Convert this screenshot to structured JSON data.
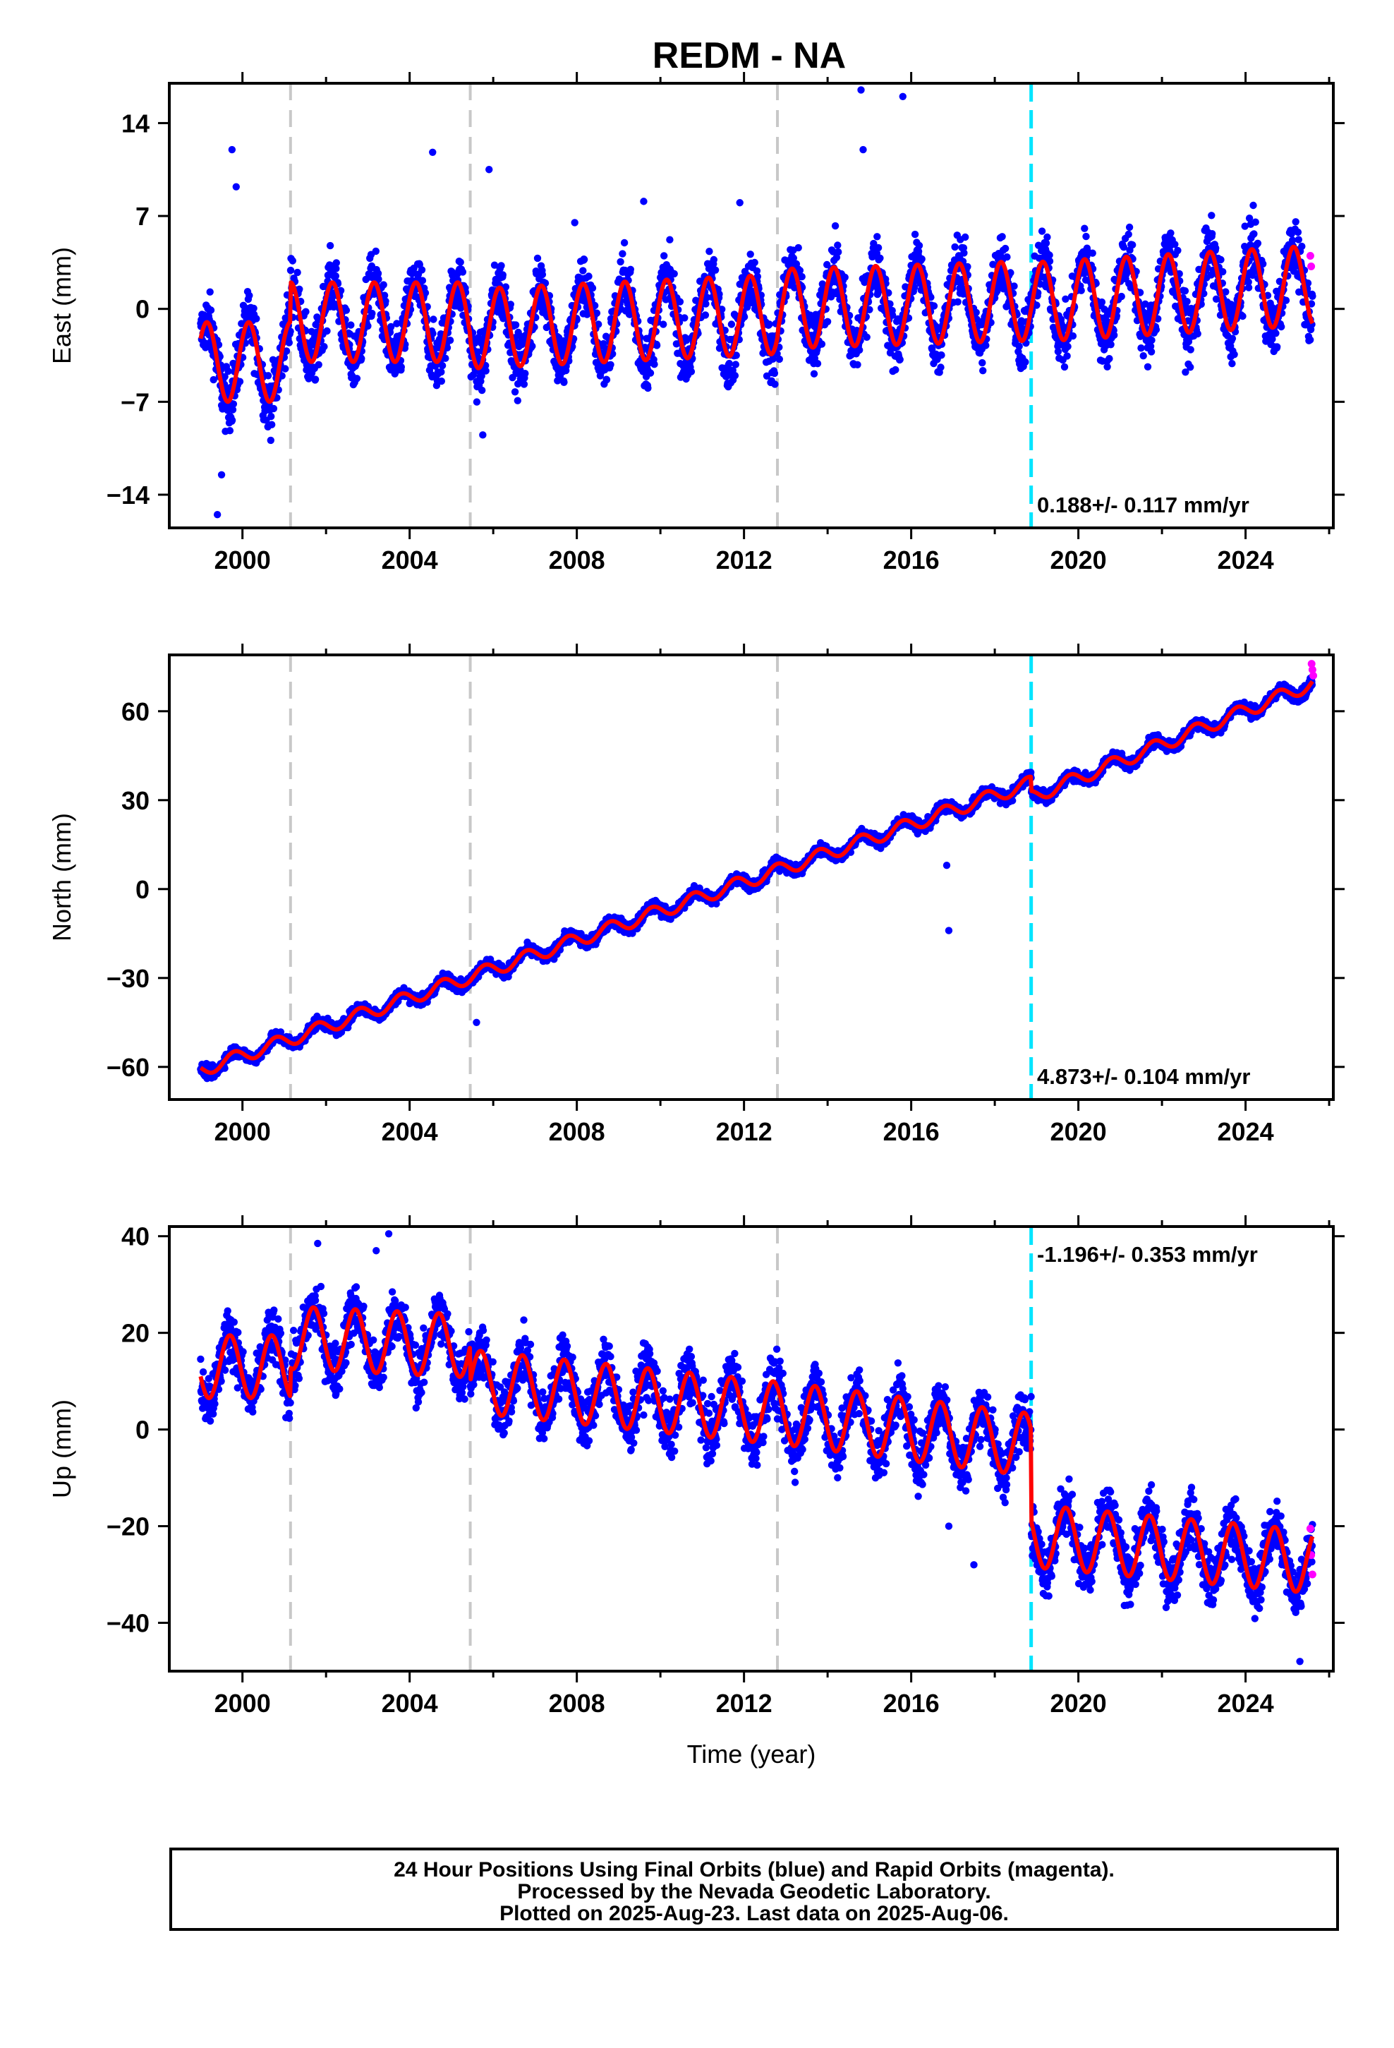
{
  "title": "REDM - NA",
  "footer": {
    "line1": "24 Hour Positions Using Final Orbits (blue) and Rapid Orbits (magenta).",
    "line2": "Processed by the Nevada Geodetic Laboratory.",
    "line3": "Plotted on 2025-Aug-23. Last data on 2025-Aug-06."
  },
  "colors": {
    "final_orbits": "#0000ff",
    "rapid_orbits": "#ff00ff",
    "model_fit": "#ff0000",
    "equipment_change": "#c8c8c8",
    "earthquake": "#00e5ff"
  },
  "chart_data": [
    {
      "type": "scatter",
      "component": "east",
      "ylabel": "East (mm)",
      "xlim": [
        1998.25,
        2026.1
      ],
      "ylim": [
        -16.5,
        17
      ],
      "xticks": [
        "2000",
        "2004",
        "2008",
        "2012",
        "2016",
        "2020",
        "2024"
      ],
      "yticks": [
        "14",
        "7",
        "0",
        "−7",
        "−14"
      ],
      "ytick_values": [
        14,
        7,
        0,
        -7,
        -14
      ],
      "rate_label": "0.188+/- 0.117 mm/yr",
      "rate_position": "bottom-right",
      "steps": [
        {
          "year": 2001.15,
          "kind": "equipment",
          "offset": 0
        },
        {
          "year": 2005.45,
          "kind": "equipment",
          "offset": 0
        },
        {
          "year": 2012.8,
          "kind": "equipment",
          "offset": 0
        },
        {
          "year": 2018.87,
          "kind": "earthquake",
          "offset": 0
        }
      ],
      "fit": {
        "start_year": 1999.0,
        "end_year": 2025.6,
        "segments": [
          {
            "start": 1999.0,
            "end": 2001.15,
            "value_at_start": -4.0,
            "rate_mm_yr": 0
          },
          {
            "start": 2001.15,
            "end": 2005.45,
            "value_at_start": -1.0,
            "rate_mm_yr": 0
          },
          {
            "start": 2005.45,
            "end": 2012.8,
            "value_at_start": -1.5,
            "rate_mm_yr": 0.15
          },
          {
            "start": 2012.8,
            "end": 2018.87,
            "value_at_start": 0.0,
            "rate_mm_yr": 0.1
          },
          {
            "start": 2018.87,
            "end": 2025.6,
            "value_at_start": 0.5,
            "rate_mm_yr": 0.188
          }
        ],
        "annual_amplitude_mm": 3.0,
        "phase_year_frac": 0.9
      },
      "scatter_noise_mm": 1.6,
      "outliers": [
        {
          "x": 1999.75,
          "y": 12.0
        },
        {
          "x": 1999.85,
          "y": 9.2
        },
        {
          "x": 2004.55,
          "y": 11.8
        },
        {
          "x": 2005.9,
          "y": 10.5
        },
        {
          "x": 2007.95,
          "y": 6.5
        },
        {
          "x": 2009.6,
          "y": 8.1
        },
        {
          "x": 2014.8,
          "y": 16.5
        },
        {
          "x": 2014.85,
          "y": 12.0
        },
        {
          "x": 2015.8,
          "y": 16.0
        },
        {
          "x": 2011.9,
          "y": 8.0
        },
        {
          "x": 1999.4,
          "y": -15.5
        },
        {
          "x": 1999.5,
          "y": -12.5
        },
        {
          "x": 2005.75,
          "y": -9.5
        }
      ],
      "rapid_points": [
        {
          "x": 2025.55,
          "y": 4.0
        },
        {
          "x": 2025.57,
          "y": 3.2
        }
      ]
    },
    {
      "type": "scatter",
      "component": "north",
      "ylabel": "North (mm)",
      "xlim": [
        1998.25,
        2026.1
      ],
      "ylim": [
        -71,
        79
      ],
      "xticks": [
        "2000",
        "2004",
        "2008",
        "2012",
        "2016",
        "2020",
        "2024"
      ],
      "yticks": [
        "60",
        "30",
        "0",
        "−30",
        "−60"
      ],
      "ytick_values": [
        60,
        30,
        0,
        -30,
        -60
      ],
      "rate_label": "4.873+/- 0.104 mm/yr",
      "rate_position": "bottom-right",
      "steps": [
        {
          "year": 2001.15,
          "kind": "equipment",
          "offset": 0
        },
        {
          "year": 2005.45,
          "kind": "equipment",
          "offset": 0
        },
        {
          "year": 2012.8,
          "kind": "equipment",
          "offset": 0
        },
        {
          "year": 2018.87,
          "kind": "earthquake",
          "offset": -4
        }
      ],
      "fit": {
        "start_year": 1999.0,
        "end_year": 2025.6,
        "segments": [
          {
            "start": 1999.0,
            "end": 2018.87,
            "value_at_start": -61.0,
            "rate_mm_yr": 4.873
          },
          {
            "start": 2018.87,
            "end": 2025.6,
            "value_at_start": 31.0,
            "rate_mm_yr": 5.7
          }
        ],
        "annual_amplitude_mm": 2.3,
        "phase_year_frac": 0.55
      },
      "scatter_noise_mm": 1.4,
      "outliers": [
        {
          "x": 2005.6,
          "y": -45.0
        },
        {
          "x": 2016.9,
          "y": -14.0
        },
        {
          "x": 2016.85,
          "y": 8.0
        }
      ],
      "rapid_points": [
        {
          "x": 2025.58,
          "y": 76.0
        },
        {
          "x": 2025.6,
          "y": 74.0
        },
        {
          "x": 2025.62,
          "y": 72.0
        }
      ]
    },
    {
      "type": "scatter",
      "component": "up",
      "ylabel": "Up (mm)",
      "xlabel": "Time (year)",
      "xlim": [
        1998.25,
        2026.1
      ],
      "ylim": [
        -50,
        42
      ],
      "xticks": [
        "2000",
        "2004",
        "2008",
        "2012",
        "2016",
        "2020",
        "2024"
      ],
      "yticks": [
        "40",
        "20",
        "0",
        "−20",
        "−40"
      ],
      "ytick_values": [
        40,
        20,
        0,
        -20,
        -40
      ],
      "rate_label": "-1.196+/- 0.353 mm/yr",
      "rate_position": "top-right",
      "steps": [
        {
          "year": 2001.15,
          "kind": "equipment",
          "offset": 0
        },
        {
          "year": 2005.45,
          "kind": "equipment",
          "offset": 0
        },
        {
          "year": 2012.8,
          "kind": "equipment",
          "offset": 0
        },
        {
          "year": 2018.87,
          "kind": "earthquake",
          "offset": -20
        }
      ],
      "fit": {
        "start_year": 1999.0,
        "end_year": 2025.6,
        "segments": [
          {
            "start": 1999.0,
            "end": 2001.15,
            "value_at_start": 13.0,
            "rate_mm_yr": 0
          },
          {
            "start": 2001.15,
            "end": 2005.45,
            "value_at_start": 19.0,
            "rate_mm_yr": -0.4
          },
          {
            "start": 2005.45,
            "end": 2012.8,
            "value_at_start": 10.0,
            "rate_mm_yr": -0.9
          },
          {
            "start": 2012.8,
            "end": 2018.87,
            "value_at_start": 3.5,
            "rate_mm_yr": -1.1
          },
          {
            "start": 2018.87,
            "end": 2025.6,
            "value_at_start": -22.0,
            "rate_mm_yr": -0.8
          }
        ],
        "annual_amplitude_mm": 6.5,
        "phase_year_frac": 0.45
      },
      "scatter_noise_mm": 4.0,
      "outliers": [
        {
          "x": 2001.8,
          "y": 38.5
        },
        {
          "x": 2003.5,
          "y": 40.5
        },
        {
          "x": 2003.2,
          "y": 37.0
        },
        {
          "x": 2017.5,
          "y": -28.0
        },
        {
          "x": 2025.3,
          "y": -48.0
        },
        {
          "x": 2016.9,
          "y": -20.0
        }
      ],
      "rapid_points": [
        {
          "x": 2025.55,
          "y": -20.5
        },
        {
          "x": 2025.57,
          "y": -26.0
        },
        {
          "x": 2025.6,
          "y": -30.0
        }
      ]
    }
  ]
}
